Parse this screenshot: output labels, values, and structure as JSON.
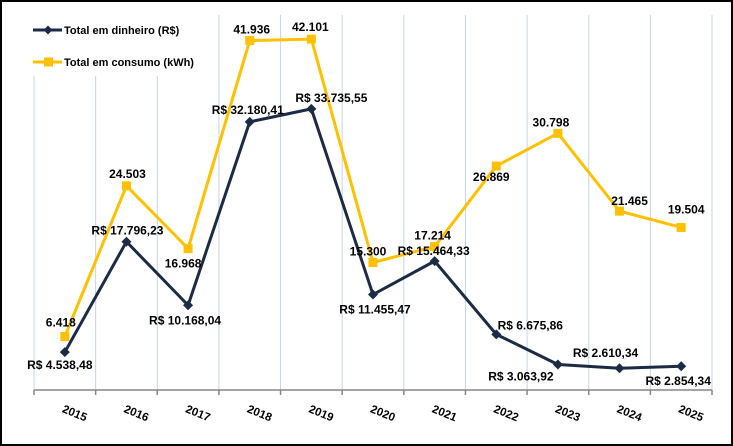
{
  "chart_data": {
    "type": "line",
    "title": "",
    "xlabel": "",
    "ylabel": "",
    "categories": [
      "2015",
      "2016",
      "2017",
      "2018",
      "2019",
      "2020",
      "2021",
      "2022",
      "2023",
      "2024",
      "2025"
    ],
    "series": [
      {
        "name": "Total em dinheiro (R$)",
        "values": [
          4538.48,
          17796.23,
          10168.04,
          32180.41,
          33735.55,
          11455.47,
          15464.33,
          6675.86,
          3063.92,
          2610.34,
          2854.34
        ],
        "labels": [
          "R$ 4.538,48",
          "R$ 17.796,23",
          "R$ 10.168,04",
          "R$ 32.180,41",
          "R$ 33.735,55",
          "R$ 11.455,47",
          "R$ 15.464,33",
          "R$ 6.675,86",
          "R$ 3.063,92",
          "R$ 2.610,34",
          "R$ 2.854,34"
        ],
        "color": "#1c2b45",
        "marker": "diamond"
      },
      {
        "name": "Total em consumo (kWh)",
        "values": [
          6418,
          24503,
          16968,
          41936,
          42101,
          15300,
          17214,
          26869,
          30798,
          21465,
          19504
        ],
        "labels": [
          "6.418",
          "24.503",
          "16.968",
          "41.936",
          "42.101",
          "15.300",
          "17.214",
          "26.869",
          "30.798",
          "21.465",
          "19.504"
        ],
        "color": "#ffc000",
        "marker": "square"
      }
    ],
    "ylim": [
      0,
      45000
    ],
    "y_axis_visible": false,
    "grid": "vertical",
    "legend": "top-left",
    "colors": {
      "gridline": "#c5d3ea",
      "axis": "#868686",
      "border": "#000000"
    }
  }
}
